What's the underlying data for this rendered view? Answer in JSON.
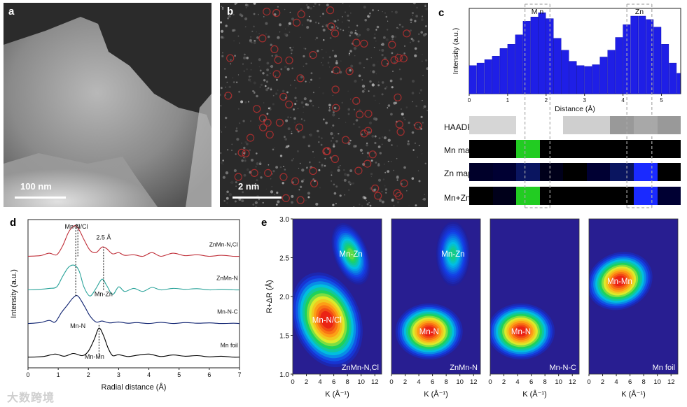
{
  "panel_a": {
    "label": "a",
    "scale": "100 nm"
  },
  "panel_b": {
    "label": "b",
    "scale": "2 nm"
  },
  "panel_c": {
    "label": "c",
    "region_labels": [
      "M n",
      "Zn"
    ],
    "map_labels": [
      "HAADF",
      "Mn map",
      "Zn map",
      "Mn+Zn"
    ]
  },
  "panel_d": {
    "label": "d"
  },
  "panel_e": {
    "label": "e"
  },
  "watermark": "大数跨境",
  "colors": {
    "bar_blue": "#1f1fe6",
    "hist_edge": "#0000aa",
    "red_curve": "#c0303a",
    "teal_curve": "#2aa39a",
    "navy_curve": "#0b1f6e"
  },
  "chart_data": [
    {
      "type": "bar",
      "id": "c",
      "title": "",
      "xlabel": "Distance (Å)",
      "ylabel": "Intensity (a.u.)",
      "xlim": [
        0,
        5.5
      ],
      "ylim": [
        0,
        1.0
      ],
      "xticks": [
        0,
        1,
        2,
        3,
        4,
        5
      ],
      "bin_width": 0.2,
      "x": [
        0.1,
        0.3,
        0.5,
        0.7,
        0.9,
        1.1,
        1.3,
        1.5,
        1.7,
        1.9,
        2.1,
        2.3,
        2.5,
        2.7,
        2.9,
        3.1,
        3.3,
        3.5,
        3.7,
        3.9,
        4.1,
        4.3,
        4.5,
        4.7,
        4.9,
        5.1,
        5.3,
        5.5
      ],
      "values": [
        0.33,
        0.36,
        0.4,
        0.44,
        0.53,
        0.58,
        0.69,
        0.85,
        0.9,
        0.95,
        0.88,
        0.65,
        0.51,
        0.38,
        0.33,
        0.32,
        0.34,
        0.43,
        0.51,
        0.66,
        0.81,
        0.91,
        0.91,
        0.87,
        0.78,
        0.58,
        0.36,
        0.24
      ],
      "highlight_ranges": [
        [
          1.45,
          2.1
        ],
        [
          4.1,
          4.75
        ]
      ],
      "map_rows": {
        "HAADF": [
          "#d6d6d6",
          "#d6d6d6",
          "#ffffff",
          "#ffffff",
          "#cfcfcf",
          "#cfcfcf",
          "#999999",
          "#a8a8a8",
          "#999999"
        ],
        "Mn map": [
          "#000000",
          "#000000",
          "#22cc22",
          "#000000",
          "#000000",
          "#000000",
          "#000000",
          "#000000",
          "#000000"
        ],
        "Zn map": [
          "#00002a",
          "#000033",
          "#0a1560",
          "#00001a",
          "#000000",
          "#000033",
          "#0a1560",
          "#1a2aff",
          "#000000"
        ],
        "Mn+Zn": [
          "#000000",
          "#00001a",
          "#22cc22",
          "#000000",
          "#000000",
          "#000000",
          "#000000",
          "#1a2aff",
          "#000033"
        ]
      }
    },
    {
      "type": "line",
      "id": "d",
      "xlabel": "Radial distance (Å)",
      "ylabel": "Intensity (a.u.)",
      "xlim": [
        0,
        7
      ],
      "xticks": [
        0,
        1,
        2,
        3,
        4,
        5,
        6,
        7
      ],
      "series": [
        {
          "name": "ZnMn-N,Cl",
          "color": "#c0303a",
          "offset": 3.3,
          "x": [
            0,
            0.4,
            0.7,
            0.95,
            1.15,
            1.35,
            1.55,
            1.7,
            1.85,
            2.05,
            2.25,
            2.45,
            2.6,
            2.8,
            3.0,
            3.2,
            3.5,
            3.8,
            4.1,
            4.4,
            4.8,
            5.2,
            5.6,
            6.0,
            6.4,
            6.8,
            7.0
          ],
          "y": [
            0,
            0.02,
            0.1,
            0.05,
            0.35,
            0.8,
            1.0,
            0.85,
            0.55,
            0.2,
            0.12,
            0.3,
            0.25,
            0.08,
            0.12,
            0.03,
            0.05,
            0.0,
            0.12,
            0.0,
            0.1,
            0.02,
            0.05,
            0.0,
            0.03,
            0.0,
            0.0
          ]
        },
        {
          "name": "ZnMn-N",
          "color": "#2aa39a",
          "offset": 2.2,
          "x": [
            0,
            0.4,
            0.7,
            0.95,
            1.15,
            1.35,
            1.55,
            1.7,
            1.85,
            2.05,
            2.25,
            2.45,
            2.6,
            2.8,
            3.0,
            3.2,
            3.5,
            3.8,
            4.1,
            4.4,
            4.8,
            5.2,
            5.6,
            6.0,
            6.4,
            6.8,
            7.0
          ],
          "y": [
            0,
            0.02,
            0.05,
            0.1,
            0.45,
            0.75,
            0.8,
            0.6,
            0.1,
            -0.2,
            0.05,
            0.35,
            0.15,
            -0.15,
            0.1,
            -0.05,
            0.05,
            -0.05,
            0.08,
            0.0,
            0.05,
            0.02,
            0.04,
            0.0,
            0.02,
            0.0,
            0.0
          ]
        },
        {
          "name": "Mn-N-C",
          "color": "#0b1f6e",
          "offset": 1.1,
          "x": [
            0,
            0.4,
            0.7,
            0.9,
            1.1,
            1.3,
            1.5,
            1.65,
            1.85,
            2.05,
            2.25,
            2.45,
            2.7,
            3.0,
            3.3,
            3.6,
            4.0,
            4.4,
            4.8,
            5.2,
            5.6,
            6.0,
            6.4,
            6.8,
            7.0
          ],
          "y": [
            0,
            0.03,
            0.1,
            0.05,
            0.35,
            0.6,
            0.85,
            0.9,
            0.6,
            0.25,
            0.05,
            0.08,
            0.02,
            0.05,
            0.01,
            0.03,
            0.0,
            0.04,
            0.0,
            0.03,
            0.01,
            0.02,
            0.0,
            0.01,
            0.0
          ]
        },
        {
          "name": "Mn foil",
          "color": "#000000",
          "offset": 0.0,
          "x": [
            0,
            0.5,
            0.9,
            1.2,
            1.5,
            1.8,
            2.0,
            2.2,
            2.35,
            2.5,
            2.65,
            2.8,
            3.0,
            3.3,
            3.6,
            4.0,
            4.4,
            4.8,
            5.2,
            5.6,
            6.0,
            6.4,
            6.8,
            7.0
          ],
          "y": [
            0,
            0.02,
            0.1,
            0.03,
            0.12,
            0.05,
            0.2,
            0.6,
            0.95,
            0.7,
            0.3,
            0.05,
            0.08,
            0.02,
            0.06,
            0.1,
            0.02,
            0.07,
            0.03,
            0.05,
            0.01,
            0.03,
            0.0,
            0.0
          ]
        }
      ],
      "annotations": [
        "Mn-N/Cl",
        "2.5 Å",
        "Mn-Zn",
        "Mn-N",
        "Mn-Mn"
      ],
      "series_labels": [
        "ZnMn-N,Cl",
        "ZnMn-N",
        "Mn-N-C",
        "Mn foil"
      ]
    },
    {
      "type": "heatmap",
      "id": "e",
      "xlabel": "K (Å⁻¹)",
      "ylabel": "R+ΔR (Å)",
      "xlim": [
        0,
        13
      ],
      "ylim": [
        1.0,
        3.0
      ],
      "xticks": [
        0,
        2,
        4,
        6,
        8,
        10,
        12
      ],
      "yticks": [
        "1.0",
        "1.5",
        "2.0",
        "2.5",
        "3.0"
      ],
      "panels": [
        {
          "name": "ZnMn-N,Cl",
          "peaks": [
            {
              "label": "Mn-N/Cl",
              "k": 5.0,
              "r": 1.7,
              "amp": 1.0
            },
            {
              "label": "Mn-Zn",
              "k": 8.5,
              "r": 2.55,
              "amp": 0.55
            }
          ]
        },
        {
          "name": "ZnMn-N",
          "peaks": [
            {
              "label": "Mn-N",
              "k": 5.5,
              "r": 1.55,
              "amp": 1.0
            },
            {
              "label": "Mn-Zn",
              "k": 9.0,
              "r": 2.55,
              "amp": 0.45
            }
          ]
        },
        {
          "name": "Mn-N-C",
          "peaks": [
            {
              "label": "Mn-N",
              "k": 4.5,
              "r": 1.55,
              "amp": 1.0
            }
          ]
        },
        {
          "name": "Mn foil",
          "peaks": [
            {
              "label": "Mn-Mn",
              "k": 4.5,
              "r": 2.2,
              "amp": 1.0
            }
          ]
        }
      ]
    }
  ]
}
